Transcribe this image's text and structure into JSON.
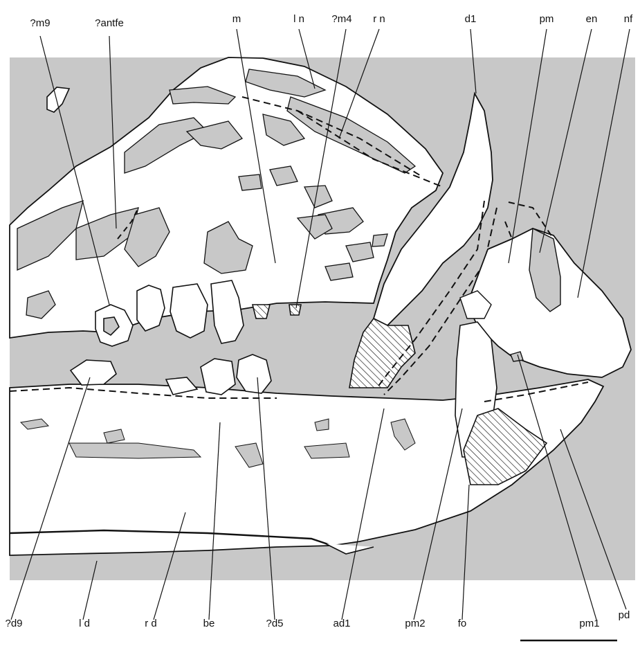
{
  "colors": {
    "background": "#ffffff",
    "matrix": "#c8c8c8",
    "bone": "#ffffff",
    "outline": "#111111",
    "hatch": "#111111"
  },
  "labels": {
    "top": [
      "?m9",
      "?antfe",
      "m",
      "l n",
      "?m4",
      "r n",
      "d1",
      "pm",
      "en",
      "nf"
    ],
    "bottom": [
      "?d9",
      "l d",
      "r d",
      "be",
      "?d5",
      "ad1",
      "pm2",
      "fo",
      "pm1",
      "pd"
    ]
  }
}
